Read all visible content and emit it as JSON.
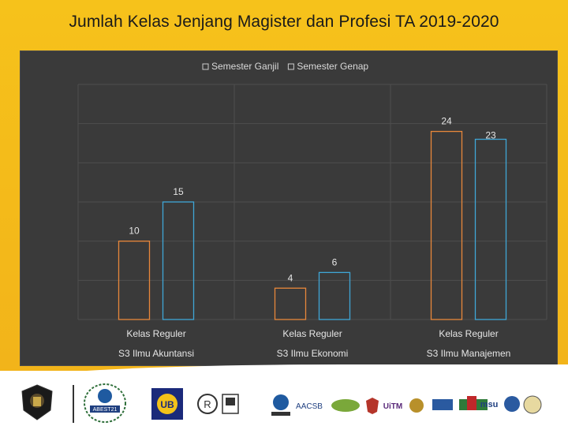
{
  "title": "Jumlah Kelas Jenjang Magister dan Profesi TA 2019-2020",
  "colors": {
    "panel_bg": "#3a3a3a",
    "ganjil": "#e8873a",
    "genap": "#3fa6d6",
    "frame": "#f4bb1a"
  },
  "chart_data": {
    "type": "bar",
    "title": "",
    "categories": [
      {
        "line1": "Kelas Reguler",
        "line2": "S3 Ilmu Akuntansi"
      },
      {
        "line1": "Kelas Reguler",
        "line2": "S3 Ilmu Ekonomi"
      },
      {
        "line1": "Kelas Reguler",
        "line2": "S3 Ilmu Manajemen"
      }
    ],
    "series": [
      {
        "name": "Semester Ganjil",
        "values": [
          10,
          4,
          24
        ],
        "value_labels": [
          "10",
          "4",
          "24"
        ]
      },
      {
        "name": "Semester Genap",
        "values": [
          15,
          6,
          23
        ],
        "value_labels": [
          "15",
          "6",
          "23"
        ]
      }
    ],
    "ylim": [
      0,
      30
    ],
    "grid": true,
    "legend_position": "top"
  },
  "footer": {
    "logos": [
      {
        "name": "university-seal-icon"
      },
      {
        "name": "abest21-logo",
        "text": "ABEST21"
      },
      {
        "name": "ub-logo",
        "text": "UB"
      },
      {
        "name": "registered-logo",
        "text": "R"
      },
      {
        "name": "aacsb-logo",
        "text": "AACSB"
      },
      {
        "name": "uitm-logo",
        "text": "UiTM"
      },
      {
        "name": "msu-logo",
        "text": "msu"
      }
    ]
  }
}
